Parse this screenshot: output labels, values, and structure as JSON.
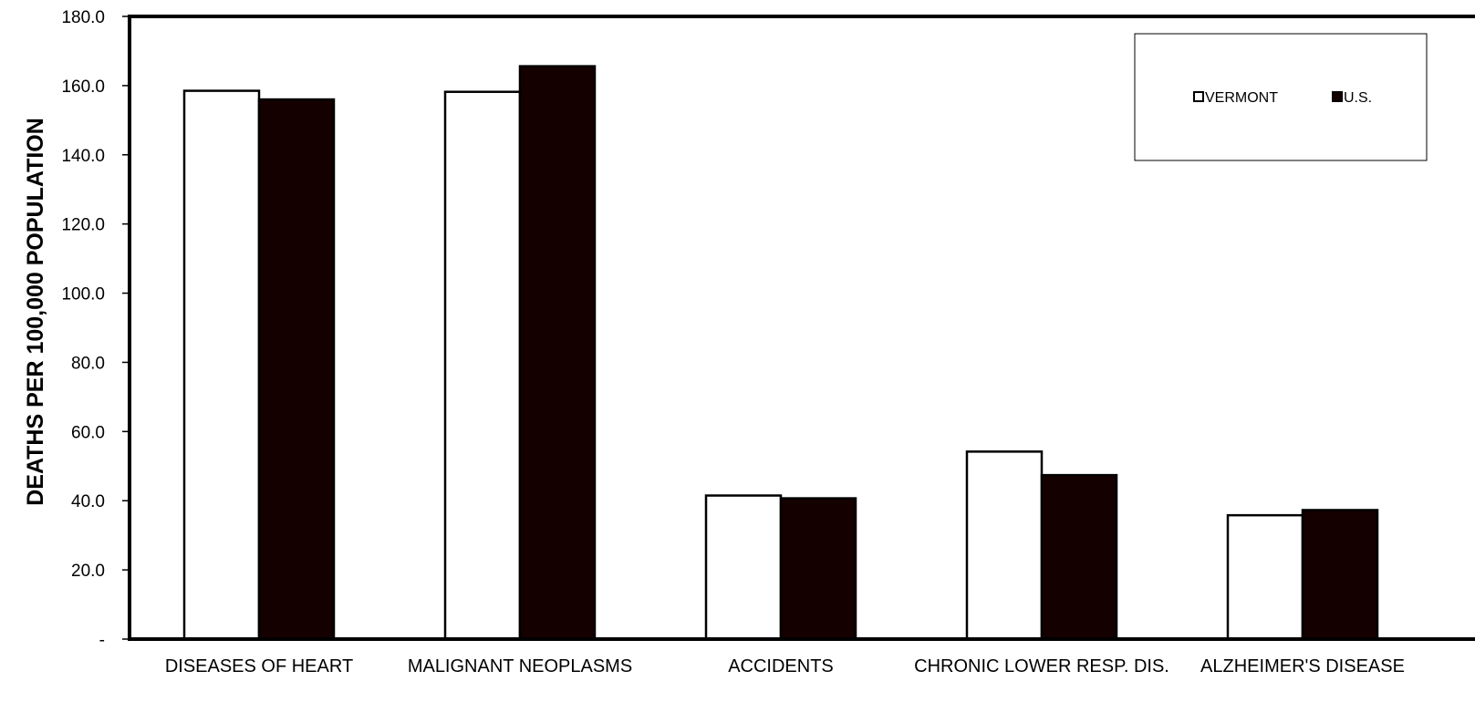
{
  "chart_data": {
    "type": "bar",
    "title": "",
    "xlabel": "",
    "ylabel": "DEATHS PER 100,000 POPULATION",
    "ylim": [
      0,
      180
    ],
    "yticks": [
      0,
      20,
      40,
      60,
      80,
      100,
      120,
      140,
      160,
      180
    ],
    "ytick_labels": [
      "-",
      "20.0",
      "40.0",
      "60.0",
      "80.0",
      "100.0",
      "120.0",
      "140.0",
      "160.0",
      "180.0"
    ],
    "grid": false,
    "legend_position": "top-right",
    "categories": [
      "DISEASES OF HEART",
      "MALIGNANT NEOPLASMS",
      "ACCIDENTS",
      "CHRONIC LOWER RESP. DIS.",
      "ALZHEIMER'S DISEASE"
    ],
    "series": [
      {
        "name": "VERMONT",
        "color": "#ffffff",
        "values": [
          158.5,
          158.2,
          41.5,
          54.2,
          35.8
        ]
      },
      {
        "name": "U.S.",
        "color": "#150000",
        "values": [
          156.0,
          165.6,
          40.7,
          47.4,
          37.3
        ]
      }
    ]
  }
}
